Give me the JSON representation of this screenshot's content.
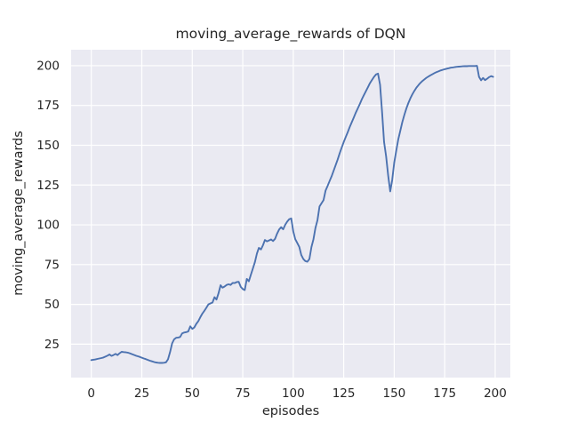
{
  "chart_data": {
    "type": "line",
    "title": "moving_average_rewards of DQN",
    "xlabel": "episodes",
    "ylabel": "moving_average_rewards",
    "x_ticks": [
      0,
      25,
      50,
      75,
      100,
      125,
      150,
      175,
      200
    ],
    "y_ticks": [
      25,
      50,
      75,
      100,
      125,
      150,
      175,
      200
    ],
    "xlim": [
      -10,
      207.5
    ],
    "ylim": [
      4,
      210
    ],
    "grid": true,
    "legend_position": "none",
    "colors": {
      "line": "#4C72B0",
      "axes_background": "#EAEAF2",
      "grid": "#FFFFFF",
      "figure_background": "#FFFFFF",
      "text": "#262626"
    },
    "series": [
      {
        "points": [
          [
            0,
            15
          ],
          [
            1,
            15.2
          ],
          [
            2,
            15.4
          ],
          [
            3,
            15.7
          ],
          [
            4,
            16
          ],
          [
            5,
            16.3
          ],
          [
            6,
            16.6
          ],
          [
            7,
            17.2
          ],
          [
            8,
            17.8
          ],
          [
            9,
            18.5
          ],
          [
            10,
            17.6
          ],
          [
            11,
            18.2
          ],
          [
            12,
            18.9
          ],
          [
            13,
            18.1
          ],
          [
            14,
            19.3
          ],
          [
            15,
            20.2
          ],
          [
            16,
            20
          ],
          [
            17,
            19.9
          ],
          [
            18,
            19.7
          ],
          [
            19,
            19.3
          ],
          [
            20,
            18.8
          ],
          [
            21,
            18.3
          ],
          [
            22,
            17.8
          ],
          [
            23,
            17.4
          ],
          [
            24,
            17
          ],
          [
            25,
            16.5
          ],
          [
            26,
            16
          ],
          [
            27,
            15.6
          ],
          [
            28,
            15.1
          ],
          [
            29,
            14.6
          ],
          [
            30,
            14.2
          ],
          [
            31,
            13.8
          ],
          [
            32,
            13.5
          ],
          [
            33,
            13.3
          ],
          [
            34,
            13.2
          ],
          [
            35,
            13.2
          ],
          [
            36,
            13.3
          ],
          [
            37,
            13.6
          ],
          [
            38,
            15.5
          ],
          [
            39,
            20
          ],
          [
            40,
            25.5
          ],
          [
            41,
            28
          ],
          [
            42,
            29
          ],
          [
            43,
            29.2
          ],
          [
            44,
            29.5
          ],
          [
            45,
            31.8
          ],
          [
            46,
            32.3
          ],
          [
            47,
            32.6
          ],
          [
            48,
            33
          ],
          [
            49,
            36.2
          ],
          [
            50,
            34.6
          ],
          [
            51,
            35.5
          ],
          [
            52,
            37.8
          ],
          [
            53,
            39.5
          ],
          [
            54,
            42
          ],
          [
            55,
            44.2
          ],
          [
            56,
            46
          ],
          [
            57,
            48
          ],
          [
            58,
            50
          ],
          [
            59,
            50.6
          ],
          [
            60,
            51.2
          ],
          [
            61,
            54.5
          ],
          [
            62,
            53
          ],
          [
            63,
            57
          ],
          [
            64,
            62
          ],
          [
            65,
            60.5
          ],
          [
            66,
            61.2
          ],
          [
            67,
            62.2
          ],
          [
            68,
            62.6
          ],
          [
            69,
            62.2
          ],
          [
            70,
            63.5
          ],
          [
            71,
            63.4
          ],
          [
            72,
            64
          ],
          [
            73,
            64.2
          ],
          [
            74,
            61
          ],
          [
            75,
            59.6
          ],
          [
            76,
            59
          ],
          [
            77,
            66
          ],
          [
            78,
            64.5
          ],
          [
            79,
            68.5
          ],
          [
            80,
            72.5
          ],
          [
            81,
            76.5
          ],
          [
            82,
            82
          ],
          [
            83,
            85.5
          ],
          [
            84,
            84.5
          ],
          [
            85,
            87.2
          ],
          [
            86,
            90.5
          ],
          [
            87,
            89.6
          ],
          [
            88,
            90.2
          ],
          [
            89,
            90.8
          ],
          [
            90,
            89.8
          ],
          [
            91,
            91.2
          ],
          [
            92,
            94.5
          ],
          [
            93,
            97
          ],
          [
            94,
            98.5
          ],
          [
            95,
            97.2
          ],
          [
            96,
            100
          ],
          [
            97,
            102
          ],
          [
            98,
            103.5
          ],
          [
            99,
            104
          ],
          [
            100,
            96
          ],
          [
            101,
            91
          ],
          [
            102,
            88.5
          ],
          [
            103,
            86
          ],
          [
            104,
            81
          ],
          [
            105,
            78.5
          ],
          [
            106,
            77.2
          ],
          [
            107,
            76.8
          ],
          [
            108,
            78.5
          ],
          [
            109,
            86
          ],
          [
            110,
            91
          ],
          [
            111,
            98
          ],
          [
            112,
            103
          ],
          [
            113,
            111.5
          ],
          [
            114,
            113.5
          ],
          [
            115,
            115.5
          ],
          [
            116,
            121.5
          ],
          [
            117,
            124.5
          ],
          [
            118,
            127.5
          ],
          [
            119,
            130.5
          ],
          [
            120,
            134
          ],
          [
            121,
            137.5
          ],
          [
            122,
            141
          ],
          [
            123,
            145
          ],
          [
            124,
            148.5
          ],
          [
            125,
            152
          ],
          [
            126,
            155.2
          ],
          [
            127,
            158.3
          ],
          [
            128,
            161.5
          ],
          [
            129,
            164.5
          ],
          [
            130,
            167.5
          ],
          [
            131,
            170.5
          ],
          [
            132,
            173.2
          ],
          [
            133,
            176
          ],
          [
            134,
            179
          ],
          [
            135,
            181.5
          ],
          [
            136,
            184
          ],
          [
            137,
            186.5
          ],
          [
            138,
            189
          ],
          [
            139,
            191
          ],
          [
            140,
            193
          ],
          [
            141,
            194.5
          ],
          [
            142,
            195
          ],
          [
            143,
            188
          ],
          [
            144,
            170.5
          ],
          [
            145,
            152
          ],
          [
            146,
            143
          ],
          [
            147,
            131
          ],
          [
            148,
            121
          ],
          [
            149,
            128
          ],
          [
            150,
            139
          ],
          [
            151,
            146.5
          ],
          [
            152,
            153.5
          ],
          [
            153,
            159
          ],
          [
            154,
            164.5
          ],
          [
            155,
            169
          ],
          [
            156,
            173
          ],
          [
            157,
            176.5
          ],
          [
            158,
            179.5
          ],
          [
            159,
            182
          ],
          [
            160,
            184.2
          ],
          [
            161,
            186.2
          ],
          [
            162,
            187.8
          ],
          [
            163,
            189.2
          ],
          [
            164,
            190.4
          ],
          [
            165,
            191.4
          ],
          [
            166,
            192.4
          ],
          [
            167,
            193.2
          ],
          [
            168,
            194
          ],
          [
            169,
            194.7
          ],
          [
            170,
            195.4
          ],
          [
            171,
            196
          ],
          [
            172,
            196.5
          ],
          [
            173,
            197
          ],
          [
            174,
            197.4
          ],
          [
            175,
            197.8
          ],
          [
            176,
            198.1
          ],
          [
            177,
            198.4
          ],
          [
            178,
            198.7
          ],
          [
            179,
            198.9
          ],
          [
            180,
            199.1
          ],
          [
            181,
            199.3
          ],
          [
            182,
            199.4
          ],
          [
            183,
            199.5
          ],
          [
            184,
            199.6
          ],
          [
            185,
            199.7
          ],
          [
            186,
            199.7
          ],
          [
            187,
            199.8
          ],
          [
            188,
            199.8
          ],
          [
            189,
            199.8
          ],
          [
            190,
            199.8
          ],
          [
            191,
            199.9
          ],
          [
            192,
            193
          ],
          [
            193,
            190.8
          ],
          [
            194,
            192.3
          ],
          [
            195,
            190.9
          ],
          [
            196,
            191.8
          ],
          [
            197,
            192.8
          ],
          [
            198,
            193.4
          ],
          [
            199,
            193
          ]
        ]
      }
    ]
  }
}
